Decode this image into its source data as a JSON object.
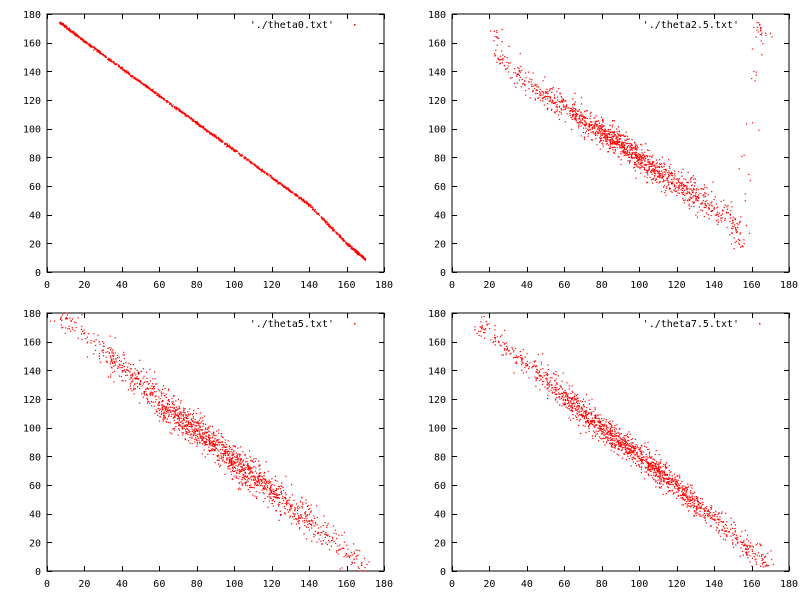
{
  "figure": {
    "background": "#ffffff",
    "axis_color": "#000000",
    "point_color": "#ff0000"
  },
  "chart_data": [
    {
      "type": "scatter",
      "title": "",
      "xlabel": "",
      "ylabel": "",
      "xlim": [
        0,
        180
      ],
      "ylim": [
        0,
        180
      ],
      "xticks": [
        0,
        20,
        40,
        60,
        80,
        100,
        120,
        140,
        160,
        180
      ],
      "yticks": [
        0,
        20,
        40,
        60,
        80,
        100,
        120,
        140,
        160,
        180
      ],
      "grid": false,
      "legend_position": "top-right",
      "series": [
        {
          "name": "'./theta0.txt'",
          "color": "#ff0000",
          "x": [
            7,
            20,
            40,
            60,
            80,
            100,
            120,
            140,
            160,
            170
          ],
          "y": [
            174,
            161,
            142,
            123,
            104,
            85,
            66,
            47,
            20,
            9
          ]
        }
      ]
    },
    {
      "type": "scatter",
      "title": "",
      "xlabel": "",
      "ylabel": "",
      "xlim": [
        0,
        180
      ],
      "ylim": [
        0,
        180
      ],
      "xticks": [
        0,
        20,
        40,
        60,
        80,
        100,
        120,
        140,
        160,
        180
      ],
      "yticks": [
        0,
        20,
        40,
        60,
        80,
        100,
        120,
        140,
        160,
        180
      ],
      "grid": false,
      "legend_position": "top-right",
      "series": [
        {
          "name": "'./theta2.5.txt'",
          "color": "#ff0000",
          "x": [
            24,
            28,
            35,
            45,
            55,
            65,
            75,
            85,
            92,
            100,
            110,
            120,
            130,
            140,
            150,
            155,
            165
          ],
          "y": [
            164,
            144,
            138,
            127,
            118,
            110,
            101,
            94,
            87,
            79,
            70,
            62,
            53,
            44,
            36,
            18,
            170
          ]
        }
      ]
    },
    {
      "type": "scatter",
      "title": "",
      "xlabel": "",
      "ylabel": "",
      "xlim": [
        0,
        180
      ],
      "ylim": [
        0,
        180
      ],
      "xticks": [
        0,
        20,
        40,
        60,
        80,
        100,
        120,
        140,
        160,
        180
      ],
      "yticks": [
        0,
        20,
        40,
        60,
        80,
        100,
        120,
        140,
        160,
        180
      ],
      "grid": false,
      "legend_position": "top-right",
      "series": [
        {
          "name": "'./theta5.txt'",
          "color": "#ff0000",
          "x": [
            10,
            20,
            30,
            40,
            50,
            60,
            70,
            80,
            90,
            100,
            110,
            120,
            130,
            140,
            150,
            160,
            168
          ],
          "y": [
            176,
            166,
            154,
            142,
            132,
            118,
            108,
            98,
            88,
            76,
            66,
            56,
            45,
            35,
            25,
            12,
            4
          ]
        }
      ]
    },
    {
      "type": "scatter",
      "title": "",
      "xlabel": "",
      "ylabel": "",
      "xlim": [
        0,
        180
      ],
      "ylim": [
        0,
        180
      ],
      "xticks": [
        0,
        20,
        40,
        60,
        80,
        100,
        120,
        140,
        160,
        180
      ],
      "yticks": [
        0,
        20,
        40,
        60,
        80,
        100,
        120,
        140,
        160,
        180
      ],
      "grid": false,
      "legend_position": "top-right",
      "series": [
        {
          "name": "'./theta7.5.txt'",
          "color": "#ff0000",
          "x": [
            16,
            25,
            35,
            45,
            55,
            65,
            75,
            85,
            95,
            105,
            115,
            125,
            135,
            145,
            155,
            162,
            168
          ],
          "y": [
            170,
            160,
            149,
            139,
            128,
            117,
            105,
            95,
            85,
            74,
            64,
            53,
            42,
            31,
            20,
            12,
            4
          ]
        }
      ]
    }
  ]
}
